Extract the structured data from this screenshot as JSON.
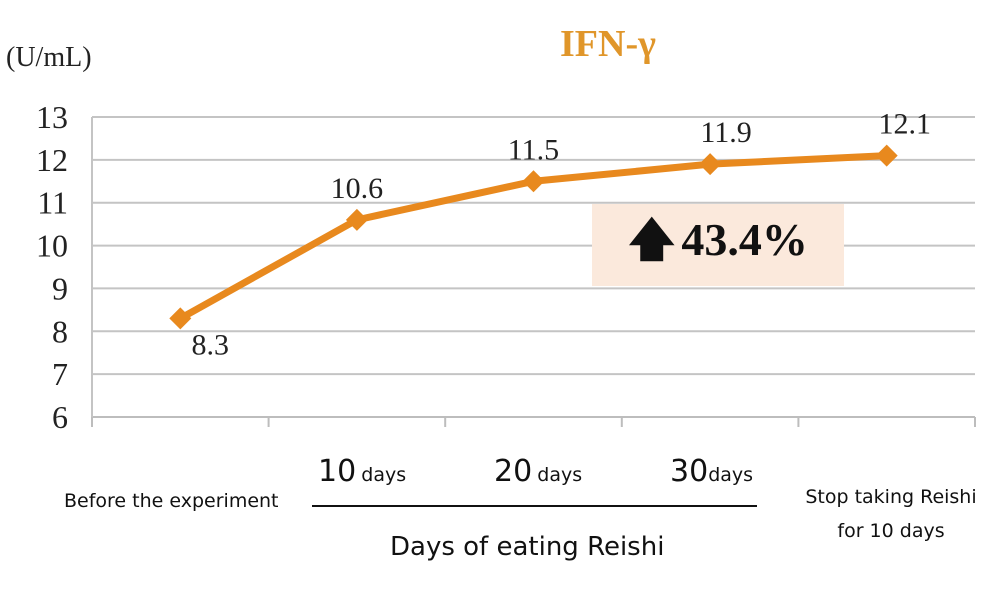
{
  "chart_data": {
    "type": "line",
    "title": "IFN-γ",
    "ylabel": "(U/mL)",
    "xlabel": "Days of eating Reishi",
    "ylim": [
      6,
      13
    ],
    "yticks": [
      6,
      7,
      8,
      9,
      10,
      11,
      12,
      13
    ],
    "grid": true,
    "categories": [
      "Before the experiment",
      "10 days",
      "20 days",
      "30days",
      "Stop taking Reishi for 10 days"
    ],
    "values": [
      8.3,
      10.6,
      11.5,
      11.9,
      12.1
    ],
    "data_labels": [
      "8.3",
      "10.6",
      "11.5",
      "11.9",
      "12.1"
    ],
    "annotation": "43.4%",
    "line_color": "#e8891e"
  },
  "labels": {
    "before": "Before the experiment",
    "d10_num": "10",
    "d10_unit": "days",
    "d20_num": "20",
    "d20_unit": "days",
    "d30_num": "30",
    "d30_unit": "days",
    "stop_line1": "Stop taking Reishi",
    "stop_line2": "for 10 days"
  }
}
